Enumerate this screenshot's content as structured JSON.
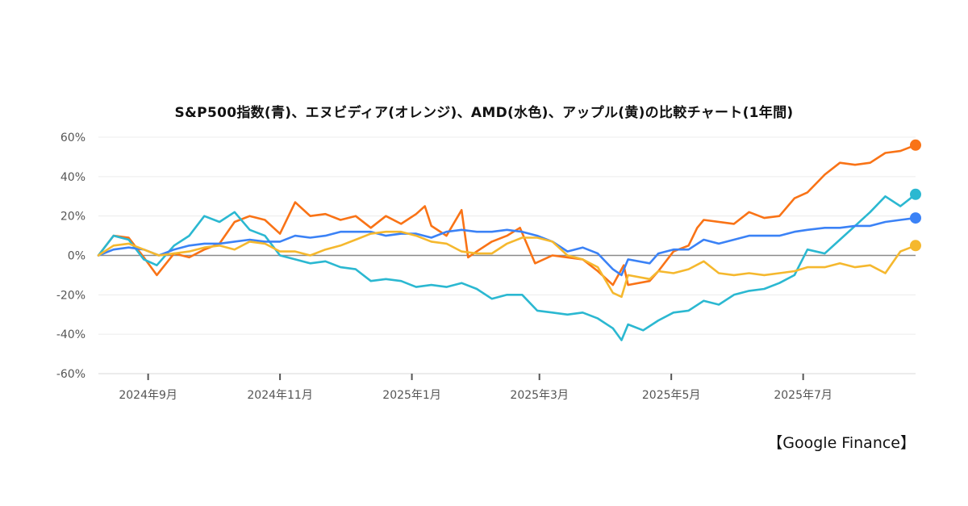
{
  "title": "S&P500指数(青)、エヌビディア(オレンジ)、AMD(水色)、アップル(黄)の比較チャート(1年間)",
  "source": "【Google Finance】",
  "chart_data": {
    "type": "line",
    "title": "S&P500指数(青)、エヌビディア(オレンジ)、AMD(水色)、アップル(黄)の比較チャート(1年間)",
    "xlabel": "",
    "ylabel": "",
    "y_unit": "%",
    "xlim": [
      "2024-08-09",
      "2025-08-22"
    ],
    "ylim": [
      -60,
      60
    ],
    "y_ticks": [
      {
        "value": 60,
        "label": "60%"
      },
      {
        "value": 40,
        "label": "40%"
      },
      {
        "value": 20,
        "label": "20%"
      },
      {
        "value": 0,
        "label": "0%"
      },
      {
        "value": -20,
        "label": "-20%"
      },
      {
        "value": -40,
        "label": "-40%"
      },
      {
        "value": -60,
        "label": "-60%"
      }
    ],
    "x_ticks": [
      {
        "date": "2024-09-01",
        "label": "2024年9月"
      },
      {
        "date": "2024-11-01",
        "label": "2024年11月"
      },
      {
        "date": "2025-01-01",
        "label": "2025年1月"
      },
      {
        "date": "2025-03-01",
        "label": "2025年3月"
      },
      {
        "date": "2025-05-01",
        "label": "2025年5月"
      },
      {
        "date": "2025-07-01",
        "label": "2025年7月"
      }
    ],
    "grid": true,
    "zero_line": true,
    "series": [
      {
        "color": "#f97316",
        "points": [
          [
            "2024-08-09",
            0
          ],
          [
            "2024-08-16",
            10
          ],
          [
            "2024-08-23",
            9
          ],
          [
            "2024-08-30",
            -1
          ],
          [
            "2024-09-05",
            -10
          ],
          [
            "2024-09-13",
            1
          ],
          [
            "2024-09-20",
            -1
          ],
          [
            "2024-09-27",
            3
          ],
          [
            "2024-10-04",
            6
          ],
          [
            "2024-10-11",
            17
          ],
          [
            "2024-10-18",
            20
          ],
          [
            "2024-10-25",
            18
          ],
          [
            "2024-11-01",
            11
          ],
          [
            "2024-11-08",
            27
          ],
          [
            "2024-11-15",
            20
          ],
          [
            "2024-11-22",
            21
          ],
          [
            "2024-11-29",
            18
          ],
          [
            "2024-12-06",
            20
          ],
          [
            "2024-12-13",
            14
          ],
          [
            "2024-12-20",
            20
          ],
          [
            "2024-12-27",
            16
          ],
          [
            "2025-01-03",
            21
          ],
          [
            "2025-01-07",
            25
          ],
          [
            "2025-01-10",
            15
          ],
          [
            "2025-01-17",
            10
          ],
          [
            "2025-01-24",
            23
          ],
          [
            "2025-01-27",
            -1
          ],
          [
            "2025-01-31",
            2
          ],
          [
            "2025-02-07",
            7
          ],
          [
            "2025-02-14",
            10
          ],
          [
            "2025-02-20",
            14
          ],
          [
            "2025-02-27",
            -4
          ],
          [
            "2025-03-07",
            0
          ],
          [
            "2025-03-14",
            -1
          ],
          [
            "2025-03-21",
            -2
          ],
          [
            "2025-03-28",
            -8
          ],
          [
            "2025-04-04",
            -15
          ],
          [
            "2025-04-09",
            -5
          ],
          [
            "2025-04-11",
            -15
          ],
          [
            "2025-04-21",
            -13
          ],
          [
            "2025-04-25",
            -8
          ],
          [
            "2025-05-02",
            2
          ],
          [
            "2025-05-09",
            5
          ],
          [
            "2025-05-13",
            14
          ],
          [
            "2025-05-16",
            18
          ],
          [
            "2025-05-30",
            16
          ],
          [
            "2025-06-06",
            22
          ],
          [
            "2025-06-13",
            19
          ],
          [
            "2025-06-20",
            20
          ],
          [
            "2025-06-27",
            29
          ],
          [
            "2025-07-03",
            32
          ],
          [
            "2025-07-11",
            41
          ],
          [
            "2025-07-18",
            47
          ],
          [
            "2025-07-25",
            46
          ],
          [
            "2025-08-01",
            47
          ],
          [
            "2025-08-08",
            52
          ],
          [
            "2025-08-15",
            53
          ],
          [
            "2025-08-22",
            56
          ]
        ]
      },
      {
        "color": "#2bb8d1",
        "points": [
          [
            "2024-08-09",
            0
          ],
          [
            "2024-08-16",
            10
          ],
          [
            "2024-08-23",
            8
          ],
          [
            "2024-08-30",
            -2
          ],
          [
            "2024-09-05",
            -5
          ],
          [
            "2024-09-13",
            5
          ],
          [
            "2024-09-20",
            10
          ],
          [
            "2024-09-27",
            20
          ],
          [
            "2024-10-04",
            17
          ],
          [
            "2024-10-11",
            22
          ],
          [
            "2024-10-18",
            13
          ],
          [
            "2024-10-25",
            10
          ],
          [
            "2024-11-01",
            0
          ],
          [
            "2024-11-08",
            -2
          ],
          [
            "2024-11-15",
            -4
          ],
          [
            "2024-11-22",
            -3
          ],
          [
            "2024-11-29",
            -6
          ],
          [
            "2024-12-06",
            -7
          ],
          [
            "2024-12-13",
            -13
          ],
          [
            "2024-12-20",
            -12
          ],
          [
            "2024-12-27",
            -13
          ],
          [
            "2025-01-03",
            -16
          ],
          [
            "2025-01-10",
            -15
          ],
          [
            "2025-01-17",
            -16
          ],
          [
            "2025-01-24",
            -14
          ],
          [
            "2025-01-31",
            -17
          ],
          [
            "2025-02-07",
            -22
          ],
          [
            "2025-02-14",
            -20
          ],
          [
            "2025-02-21",
            -20
          ],
          [
            "2025-02-28",
            -28
          ],
          [
            "2025-03-07",
            -29
          ],
          [
            "2025-03-14",
            -30
          ],
          [
            "2025-03-21",
            -29
          ],
          [
            "2025-03-28",
            -32
          ],
          [
            "2025-04-04",
            -37
          ],
          [
            "2025-04-08",
            -43
          ],
          [
            "2025-04-11",
            -35
          ],
          [
            "2025-04-18",
            -38
          ],
          [
            "2025-04-25",
            -33
          ],
          [
            "2025-05-02",
            -29
          ],
          [
            "2025-05-09",
            -28
          ],
          [
            "2025-05-16",
            -23
          ],
          [
            "2025-05-23",
            -25
          ],
          [
            "2025-05-30",
            -20
          ],
          [
            "2025-06-06",
            -18
          ],
          [
            "2025-06-13",
            -17
          ],
          [
            "2025-06-20",
            -14
          ],
          [
            "2025-06-27",
            -10
          ],
          [
            "2025-07-03",
            3
          ],
          [
            "2025-07-11",
            1
          ],
          [
            "2025-07-18",
            8
          ],
          [
            "2025-07-25",
            15
          ],
          [
            "2025-08-01",
            22
          ],
          [
            "2025-08-08",
            30
          ],
          [
            "2025-08-15",
            25
          ],
          [
            "2025-08-22",
            31
          ]
        ]
      },
      {
        "color": "#3b82f6",
        "points": [
          [
            "2024-08-09",
            0
          ],
          [
            "2024-08-16",
            3
          ],
          [
            "2024-08-23",
            4
          ],
          [
            "2024-08-30",
            3
          ],
          [
            "2024-09-06",
            0
          ],
          [
            "2024-09-13",
            3
          ],
          [
            "2024-09-20",
            5
          ],
          [
            "2024-09-27",
            6
          ],
          [
            "2024-10-04",
            6
          ],
          [
            "2024-10-11",
            7
          ],
          [
            "2024-10-18",
            8
          ],
          [
            "2024-10-25",
            7
          ],
          [
            "2024-11-01",
            7
          ],
          [
            "2024-11-08",
            10
          ],
          [
            "2024-11-15",
            9
          ],
          [
            "2024-11-22",
            10
          ],
          [
            "2024-11-29",
            12
          ],
          [
            "2024-12-06",
            12
          ],
          [
            "2024-12-13",
            12
          ],
          [
            "2024-12-20",
            10
          ],
          [
            "2024-12-27",
            11
          ],
          [
            "2025-01-03",
            11
          ],
          [
            "2025-01-10",
            9
          ],
          [
            "2025-01-17",
            12
          ],
          [
            "2025-01-24",
            13
          ],
          [
            "2025-01-31",
            12
          ],
          [
            "2025-02-07",
            12
          ],
          [
            "2025-02-14",
            13
          ],
          [
            "2025-02-21",
            12
          ],
          [
            "2025-02-28",
            10
          ],
          [
            "2025-03-07",
            7
          ],
          [
            "2025-03-14",
            2
          ],
          [
            "2025-03-21",
            4
          ],
          [
            "2025-03-28",
            1
          ],
          [
            "2025-04-04",
            -7
          ],
          [
            "2025-04-08",
            -10
          ],
          [
            "2025-04-11",
            -2
          ],
          [
            "2025-04-21",
            -4
          ],
          [
            "2025-04-25",
            1
          ],
          [
            "2025-05-02",
            3
          ],
          [
            "2025-05-09",
            3
          ],
          [
            "2025-05-16",
            8
          ],
          [
            "2025-05-23",
            6
          ],
          [
            "2025-05-30",
            8
          ],
          [
            "2025-06-06",
            10
          ],
          [
            "2025-06-13",
            10
          ],
          [
            "2025-06-20",
            10
          ],
          [
            "2025-06-27",
            12
          ],
          [
            "2025-07-03",
            13
          ],
          [
            "2025-07-11",
            14
          ],
          [
            "2025-07-18",
            14
          ],
          [
            "2025-07-25",
            15
          ],
          [
            "2025-08-01",
            15
          ],
          [
            "2025-08-08",
            17
          ],
          [
            "2025-08-15",
            18
          ],
          [
            "2025-08-22",
            19
          ]
        ]
      },
      {
        "color": "#f5b82e",
        "points": [
          [
            "2024-08-09",
            0
          ],
          [
            "2024-08-16",
            5
          ],
          [
            "2024-08-23",
            6
          ],
          [
            "2024-08-30",
            3
          ],
          [
            "2024-09-06",
            0
          ],
          [
            "2024-09-13",
            1
          ],
          [
            "2024-09-20",
            2
          ],
          [
            "2024-09-27",
            4
          ],
          [
            "2024-10-04",
            5
          ],
          [
            "2024-10-11",
            3
          ],
          [
            "2024-10-18",
            7
          ],
          [
            "2024-10-25",
            6
          ],
          [
            "2024-11-01",
            2
          ],
          [
            "2024-11-08",
            2
          ],
          [
            "2024-11-15",
            0
          ],
          [
            "2024-11-22",
            3
          ],
          [
            "2024-11-29",
            5
          ],
          [
            "2024-12-06",
            8
          ],
          [
            "2024-12-13",
            11
          ],
          [
            "2024-12-20",
            12
          ],
          [
            "2024-12-27",
            12
          ],
          [
            "2025-01-03",
            10
          ],
          [
            "2025-01-10",
            7
          ],
          [
            "2025-01-17",
            6
          ],
          [
            "2025-01-24",
            2
          ],
          [
            "2025-01-31",
            1
          ],
          [
            "2025-02-07",
            1
          ],
          [
            "2025-02-14",
            6
          ],
          [
            "2025-02-21",
            9
          ],
          [
            "2025-02-28",
            9
          ],
          [
            "2025-03-07",
            7
          ],
          [
            "2025-03-14",
            0
          ],
          [
            "2025-03-21",
            -2
          ],
          [
            "2025-03-28",
            -6
          ],
          [
            "2025-04-04",
            -19
          ],
          [
            "2025-04-08",
            -21
          ],
          [
            "2025-04-11",
            -10
          ],
          [
            "2025-04-21",
            -12
          ],
          [
            "2025-04-25",
            -8
          ],
          [
            "2025-05-02",
            -9
          ],
          [
            "2025-05-09",
            -7
          ],
          [
            "2025-05-16",
            -3
          ],
          [
            "2025-05-23",
            -9
          ],
          [
            "2025-05-30",
            -10
          ],
          [
            "2025-06-06",
            -9
          ],
          [
            "2025-06-13",
            -10
          ],
          [
            "2025-06-20",
            -9
          ],
          [
            "2025-06-27",
            -8
          ],
          [
            "2025-07-03",
            -6
          ],
          [
            "2025-07-11",
            -6
          ],
          [
            "2025-07-18",
            -4
          ],
          [
            "2025-07-25",
            -6
          ],
          [
            "2025-08-01",
            -5
          ],
          [
            "2025-08-08",
            -9
          ],
          [
            "2025-08-15",
            2
          ],
          [
            "2025-08-22",
            5
          ]
        ]
      }
    ]
  }
}
